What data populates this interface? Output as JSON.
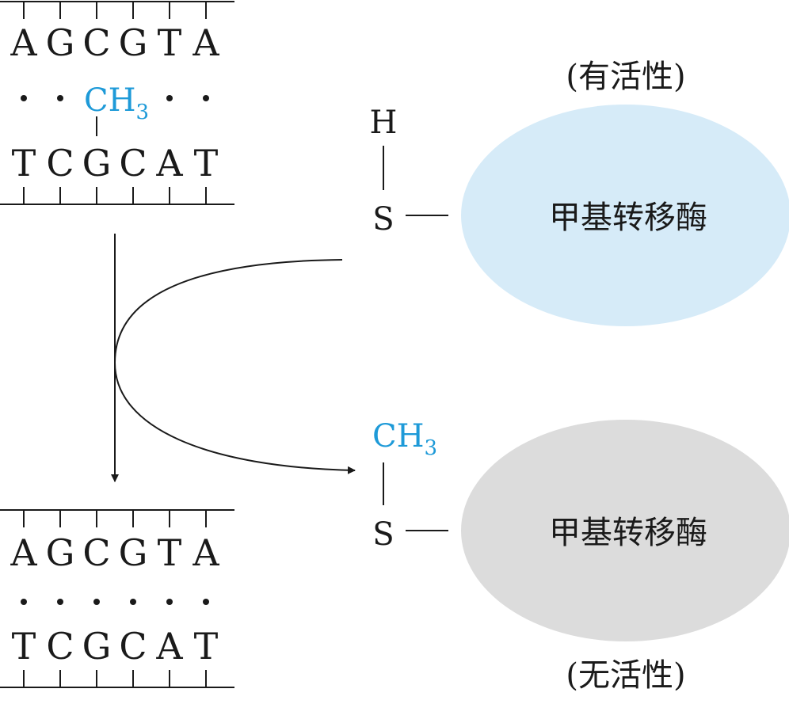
{
  "dna_top": {
    "strand_upper": [
      "A",
      "G",
      "C",
      "G",
      "T",
      "A"
    ],
    "strand_lower": [
      "T",
      "C",
      "G",
      "C",
      "A",
      "T"
    ],
    "methyl_label": "CH",
    "methyl_subscript": "3"
  },
  "dna_bottom": {
    "strand_upper": [
      "A",
      "G",
      "C",
      "G",
      "T",
      "A"
    ],
    "strand_lower": [
      "T",
      "C",
      "G",
      "C",
      "A",
      "T"
    ]
  },
  "enzyme_active": {
    "state": "(有活性)",
    "name": "甲基转移酶",
    "thiol_h": "H",
    "sulfur": "S",
    "color": "#d6ebf8"
  },
  "enzyme_inactive": {
    "state": "(无活性)",
    "name": "甲基转移酶",
    "methyl_label": "CH",
    "methyl_subscript": "3",
    "sulfur": "S",
    "color": "#dcdcdc"
  },
  "colors": {
    "methyl": "#1e9ad8",
    "line": "#1a1a1a"
  }
}
